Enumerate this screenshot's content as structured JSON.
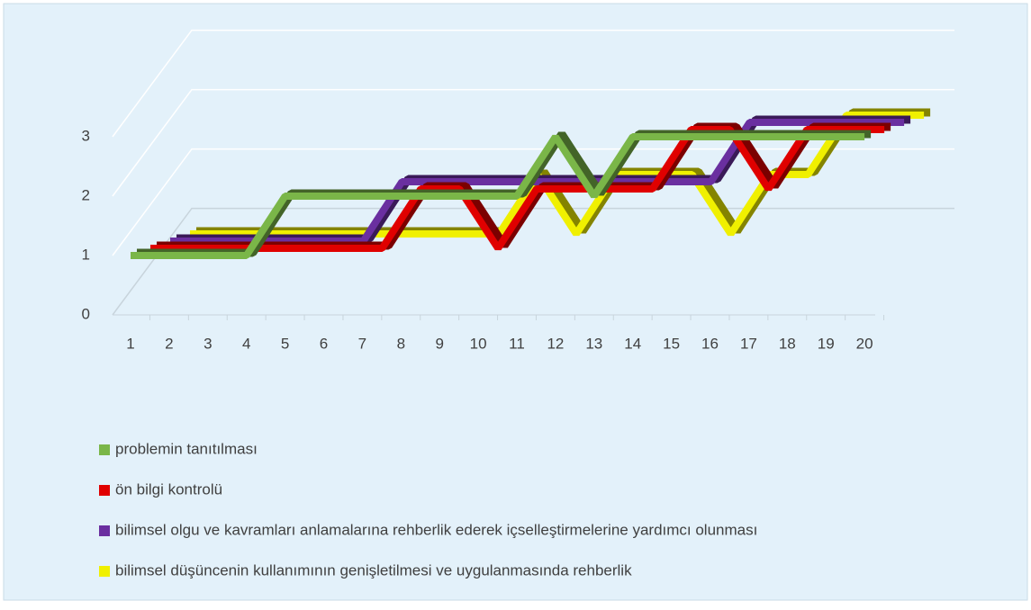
{
  "chart_data": {
    "type": "line3d",
    "categories": [
      "1",
      "2",
      "3",
      "4",
      "5",
      "6",
      "7",
      "8",
      "9",
      "10",
      "11",
      "12",
      "13",
      "14",
      "15",
      "16",
      "17",
      "18",
      "19",
      "20"
    ],
    "series": [
      {
        "name": "problemin tanıtılması",
        "color": "#7ab648",
        "values": [
          1,
          1,
          1,
          1,
          2,
          2,
          2,
          2,
          2,
          2,
          2,
          3,
          2,
          3,
          3,
          3,
          3,
          3,
          3,
          3
        ]
      },
      {
        "name": "ön bilgi kontrolü",
        "color": "#e00000",
        "values": [
          1,
          1,
          1,
          1,
          1,
          1,
          1,
          2,
          2,
          1,
          2,
          2,
          2,
          2,
          3,
          3,
          2,
          3,
          3,
          3
        ]
      },
      {
        "name": "bilimsel olgu ve kavramları anlamalarına rehberlik ederek içselleştirmelerine yardımcı olunması",
        "color": "#6a2fa0",
        "values": [
          1,
          1,
          1,
          1,
          1,
          1,
          2,
          2,
          2,
          2,
          2,
          2,
          2,
          2,
          2,
          3,
          3,
          3,
          3,
          3
        ]
      },
      {
        "name": "bilimsel düşüncenin kullanımının genişletilmesi ve uygulanmasında rehberlik",
        "color": "#f0f000",
        "values": [
          1,
          1,
          1,
          1,
          1,
          1,
          1,
          1,
          1,
          2,
          1,
          2,
          2,
          2,
          1,
          2,
          2,
          3,
          3,
          3
        ]
      }
    ],
    "ylim": [
      0,
      3
    ],
    "yticks": [
      0,
      1,
      2,
      3
    ],
    "grid": true,
    "legend": "bottom"
  }
}
